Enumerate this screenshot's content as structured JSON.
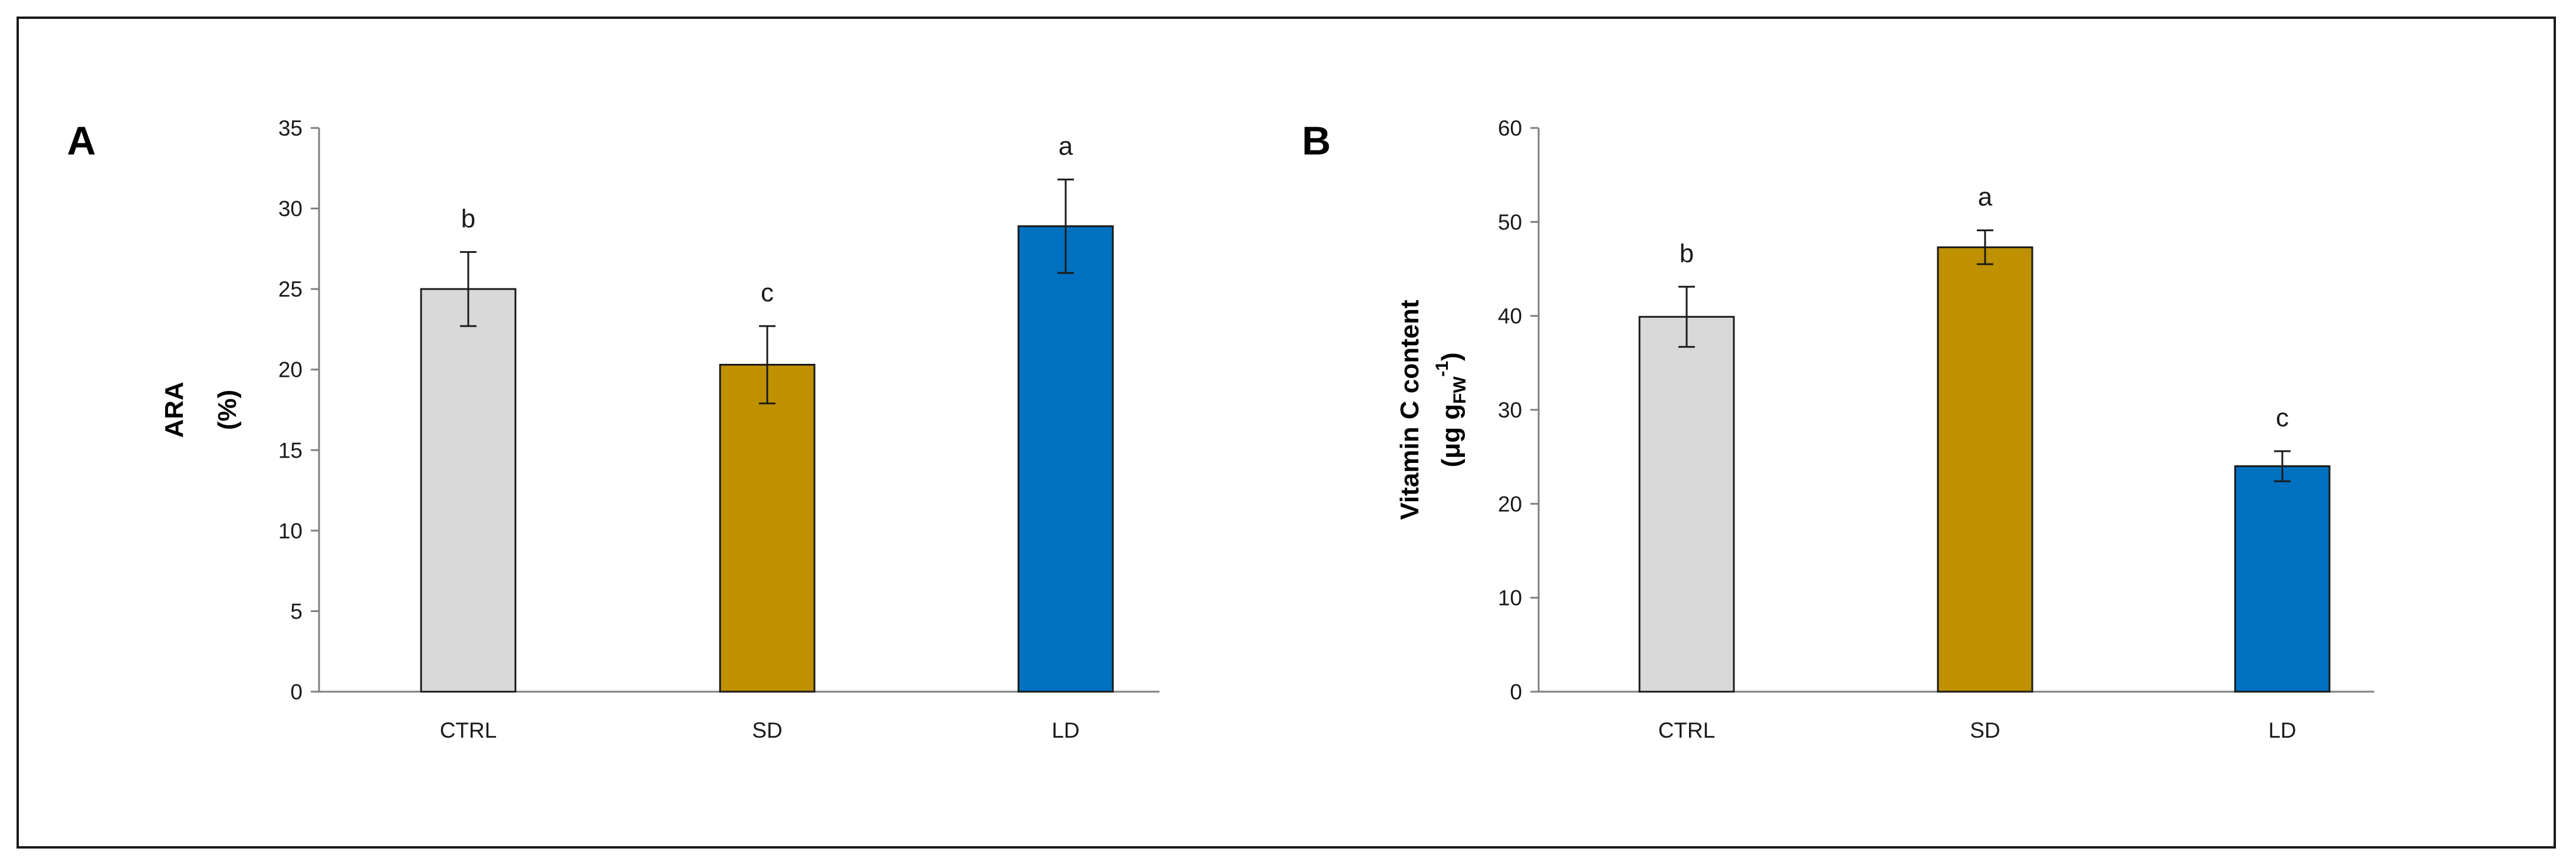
{
  "chart_data": [
    {
      "type": "bar",
      "panel_label": "A",
      "title": "",
      "xlabel": "",
      "ylabel": "ARA",
      "ylabel_unit": "(%)",
      "categories": [
        "CTRL",
        "SD",
        "LD"
      ],
      "values": [
        25,
        20.3,
        28.9
      ],
      "errors": [
        2.3,
        2.4,
        2.9
      ],
      "significance": [
        "b",
        "c",
        "a"
      ],
      "colors": [
        "#d9d9d9",
        "#bf9000",
        "#0070c0"
      ],
      "ylim": [
        0,
        35
      ],
      "yticks": [
        0,
        5,
        10,
        15,
        20,
        25,
        30,
        35
      ],
      "grid": false,
      "legend": "none"
    },
    {
      "type": "bar",
      "panel_label": "B",
      "title": "",
      "xlabel": "",
      "ylabel": "Vitamin C content",
      "ylabel_unit": "(μg gFW⁻¹)",
      "ylabel_unit_parts": {
        "open": "(μg g",
        "sub": "FW",
        "sup": "-1",
        "close": ")"
      },
      "categories": [
        "CTRL",
        "SD",
        "LD"
      ],
      "values": [
        39.9,
        47.3,
        24
      ],
      "errors": [
        3.2,
        1.8,
        1.6
      ],
      "significance": [
        "b",
        "a",
        "c"
      ],
      "colors": [
        "#d9d9d9",
        "#bf9000",
        "#0070c0"
      ],
      "ylim": [
        0,
        60
      ],
      "yticks": [
        0,
        10,
        20,
        30,
        40,
        50,
        60
      ],
      "grid": false,
      "legend": "none"
    }
  ]
}
